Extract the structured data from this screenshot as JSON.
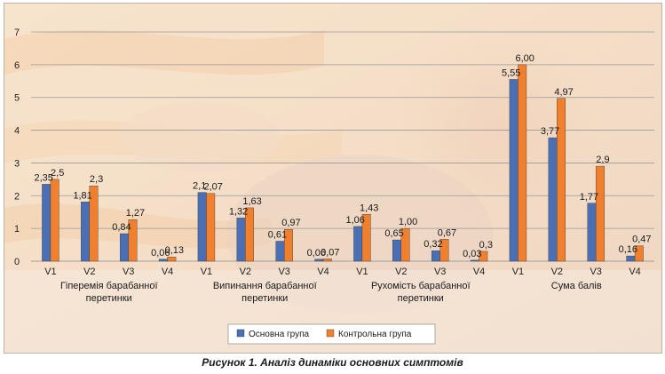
{
  "chart_data": {
    "type": "bar",
    "ylim": [
      0,
      7
    ],
    "yticks": [
      "0",
      "1",
      "2",
      "3",
      "4",
      "5",
      "6",
      "7"
    ],
    "grid": true,
    "legend_position": "bottom-center",
    "groups": [
      {
        "label": "Гіперемія барабанної перетинки",
        "categories": [
          "V1",
          "V2",
          "V3",
          "V4"
        ]
      },
      {
        "label": "Випинання барабанної перетинки",
        "categories": [
          "V1",
          "V2",
          "V3",
          "V4"
        ]
      },
      {
        "label": "Рухомість барабанної перетинки",
        "categories": [
          "V1",
          "V2",
          "V3",
          "V4"
        ]
      },
      {
        "label": "Сума балів",
        "categories": [
          "V1",
          "V2",
          "V3",
          "V4"
        ]
      }
    ],
    "series": [
      {
        "name": "Основна група",
        "color": "#4a6fb5",
        "values": [
          2.35,
          1.81,
          0.84,
          0.06,
          2.1,
          1.32,
          0.61,
          0.06,
          1.06,
          0.65,
          0.32,
          0.03,
          5.55,
          3.77,
          1.77,
          0.16
        ],
        "labels": [
          "2,35",
          "1,81",
          "0,84",
          "0,06",
          "2,1",
          "1,32",
          "0,61",
          "0,06",
          "1,06",
          "0,65",
          "0,32",
          "0,03",
          "5,55",
          "3,77",
          "1,77",
          "0,16"
        ]
      },
      {
        "name": "Контрольна група",
        "color": "#f07f2e",
        "values": [
          2.5,
          2.3,
          1.27,
          0.13,
          2.07,
          1.63,
          0.97,
          0.07,
          1.43,
          1.0,
          0.67,
          0.3,
          6.0,
          4.97,
          2.9,
          0.47
        ],
        "labels": [
          "2,5",
          "2,3",
          "1,27",
          "0,13",
          "2,07",
          "1,63",
          "0,97",
          "0,07",
          "1,43",
          "1,00",
          "0,67",
          "0,3",
          "6,00",
          "4,97",
          "2,9",
          "0,47"
        ]
      }
    ]
  },
  "caption": "Рисунок 1. Аналіз динаміки основних симптомів"
}
